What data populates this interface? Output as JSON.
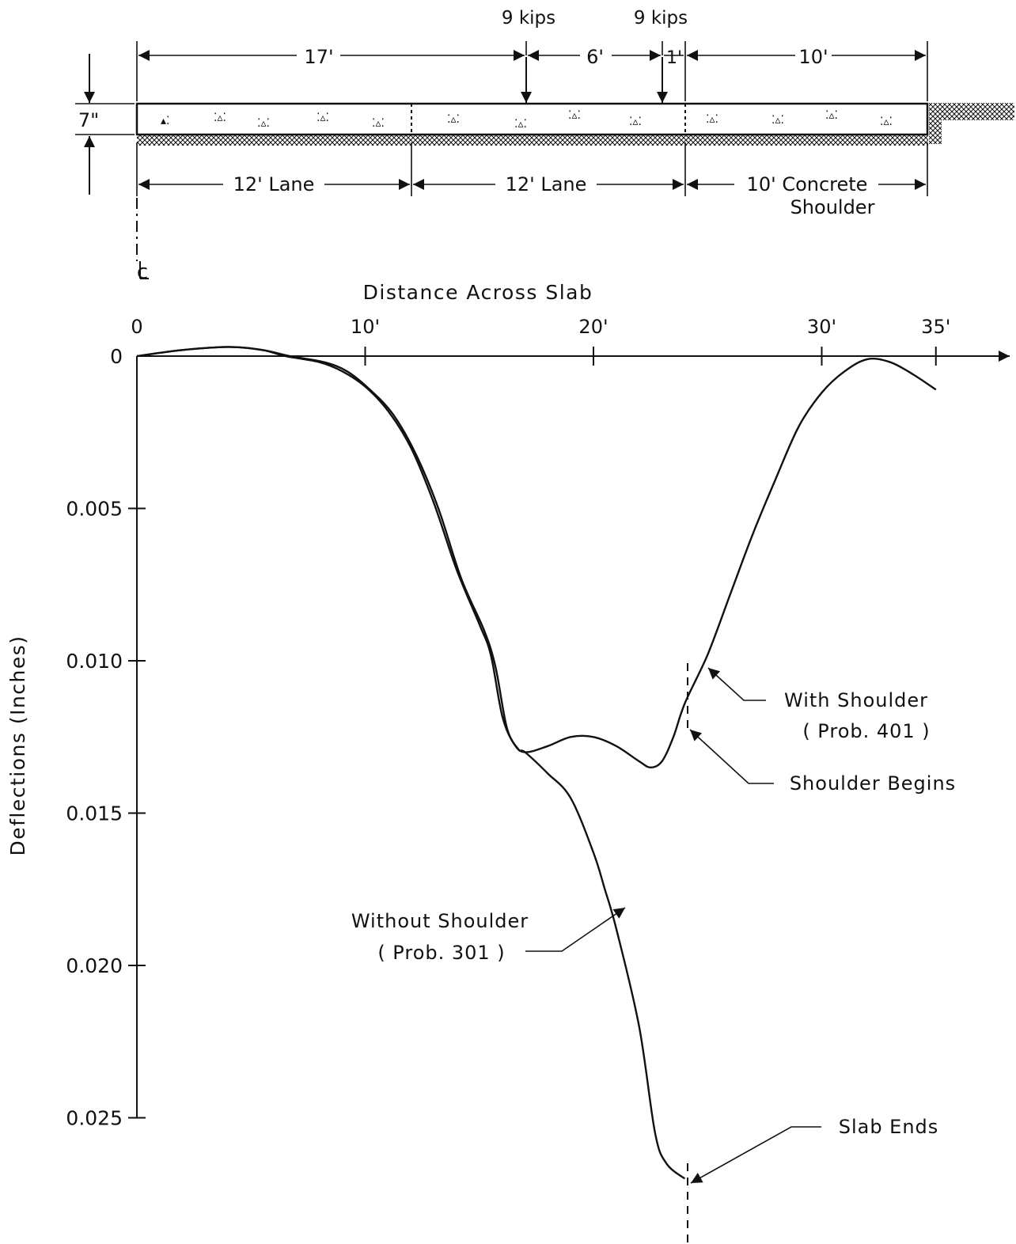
{
  "diagram": {
    "loads": [
      "9 kips",
      "9 kips"
    ],
    "top_dims": [
      "17'",
      "6'",
      "1'",
      "10'"
    ],
    "thickness": "7\"",
    "lanes": [
      "12' Lane",
      "12' Lane",
      "10' Concrete",
      "Shoulder"
    ],
    "centerline": "CL"
  },
  "annotations": {
    "with_shoulder": "With Shoulder",
    "with_shoulder_prob": "( Prob. 401 )",
    "shoulder_begins": "Shoulder Begins",
    "without_shoulder": "Without Shoulder",
    "without_shoulder_prob": "( Prob. 301 )",
    "slab_ends": "Slab Ends"
  },
  "chart_data": {
    "type": "line",
    "title": "",
    "xlabel": "Distance Across Slab",
    "ylabel": "Deflections (Inches)",
    "xlim": [
      0,
      38
    ],
    "ylim": [
      0,
      0.028
    ],
    "y_inverted": true,
    "x_ticks": [
      "0",
      "10'",
      "20'",
      "30'",
      "35'"
    ],
    "x_tick_values": [
      0,
      10,
      20,
      30,
      35
    ],
    "y_ticks": [
      "0",
      "0.005",
      "0.010",
      "0.015",
      "0.020",
      "0.025"
    ],
    "y_tick_values": [
      0,
      0.005,
      0.01,
      0.015,
      0.02,
      0.025
    ],
    "series": [
      {
        "name": "With Shoulder",
        "x": [
          0,
          2,
          4,
          5.5,
          6.5,
          8,
          9,
          10,
          11,
          12,
          13,
          14,
          15,
          15.5,
          16,
          16.5,
          17,
          18,
          19,
          20,
          21,
          22,
          22.5,
          23,
          23.5,
          24,
          25,
          26,
          27,
          28,
          29,
          30,
          31,
          32,
          33,
          34,
          35
        ],
        "y": [
          0,
          -0.0002,
          -0.0003,
          -0.0002,
          0,
          0.0002,
          0.0005,
          0.001,
          0.0018,
          0.003,
          0.0048,
          0.007,
          0.0088,
          0.0098,
          0.0118,
          0.0127,
          0.013,
          0.0128,
          0.0125,
          0.0125,
          0.0128,
          0.0133,
          0.0135,
          0.0133,
          0.0125,
          0.0114,
          0.0098,
          0.0078,
          0.0058,
          0.004,
          0.0023,
          0.0012,
          0.0005,
          0.0001,
          0.0002,
          0.0006,
          0.0011
        ]
      },
      {
        "name": "Without Shoulder",
        "x": [
          0,
          2,
          4,
          5.5,
          6.5,
          8,
          9,
          10,
          11,
          12,
          13,
          14,
          15,
          15.5,
          16,
          16.5,
          17,
          18,
          19,
          20,
          20.5,
          21,
          22,
          22.7,
          23.2,
          24
        ],
        "y": [
          0,
          -0.0002,
          -0.0003,
          -0.0002,
          0,
          0.0002,
          0.0005,
          0.0011,
          0.0019,
          0.0032,
          0.005,
          0.0073,
          0.009,
          0.0102,
          0.0122,
          0.0129,
          0.013,
          0.0137,
          0.0145,
          0.0163,
          0.0175,
          0.0188,
          0.022,
          0.0255,
          0.0265,
          0.027
        ]
      }
    ]
  }
}
